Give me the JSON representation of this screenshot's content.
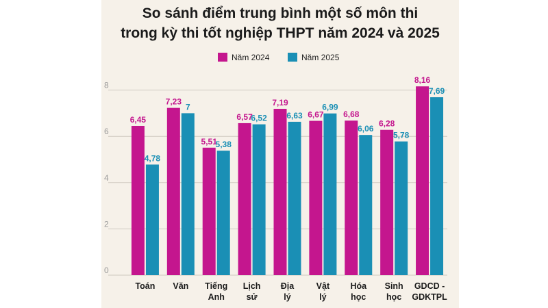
{
  "chart_data": {
    "type": "bar",
    "title_lines": [
      "So sánh điểm trung bình một số môn thi",
      "trong kỳ thi tốt nghiệp THPT năm 2024 và 2025"
    ],
    "categories": [
      [
        "Toán"
      ],
      [
        "Văn"
      ],
      [
        "Tiếng",
        "Anh"
      ],
      [
        "Lịch",
        "sử"
      ],
      [
        "Địa",
        "lý"
      ],
      [
        "Vật",
        "lý"
      ],
      [
        "Hóa",
        "học"
      ],
      [
        "Sinh",
        "học"
      ],
      [
        "GDCD -",
        "GDKTPL"
      ]
    ],
    "series": [
      {
        "name": "Năm 2024",
        "color": "#c4168e",
        "values": [
          6.45,
          7.23,
          5.51,
          6.57,
          7.19,
          6.67,
          6.68,
          6.28,
          8.16
        ],
        "labels": [
          "6,45",
          "7,23",
          "5,51",
          "6,57",
          "7,19",
          "6,67",
          "6,68",
          "6,28",
          "8,16"
        ]
      },
      {
        "name": "Năm 2025",
        "color": "#1a8fb5",
        "values": [
          4.78,
          7,
          5.38,
          6.52,
          6.63,
          6.99,
          6.06,
          5.78,
          7.69
        ],
        "labels": [
          "4,78",
          "7",
          "5,38",
          "6,52",
          "6,63",
          "6,99",
          "6,06",
          "5,78",
          "7,69"
        ]
      }
    ],
    "yticks": [
      "0",
      "2",
      "4",
      "6",
      "8"
    ],
    "ylim": [
      0,
      8.8
    ],
    "grid": true,
    "legend": "top-center"
  }
}
